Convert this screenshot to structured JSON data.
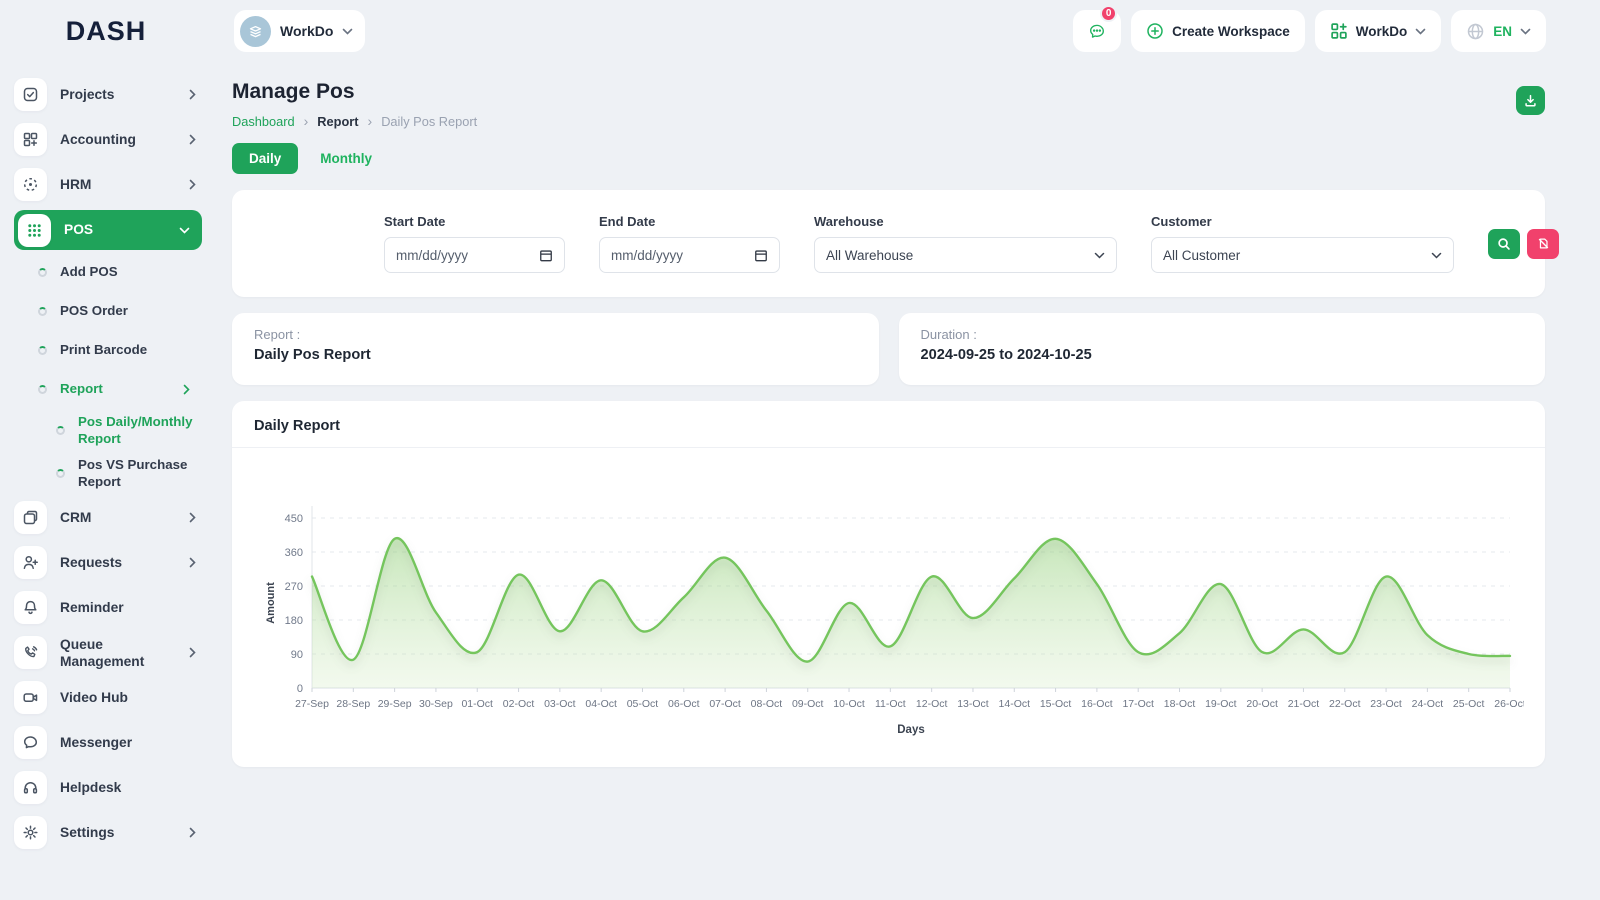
{
  "header": {
    "logo_text": "DASH",
    "workspace_name": "WorkDo",
    "chat_badge": "0",
    "create_workspace_label": "Create Workspace",
    "workspace_menu_label": "WorkDo",
    "language": "EN"
  },
  "sidebar": {
    "items": [
      {
        "label": "Projects"
      },
      {
        "label": "Accounting"
      },
      {
        "label": "HRM"
      },
      {
        "label": "POS"
      },
      {
        "label": "CRM"
      },
      {
        "label": "Requests"
      },
      {
        "label": "Reminder"
      },
      {
        "label": "Queue Management"
      },
      {
        "label": "Video Hub"
      },
      {
        "label": "Messenger"
      },
      {
        "label": "Helpdesk"
      },
      {
        "label": "Settings"
      }
    ],
    "pos_submenu": [
      {
        "label": "Add POS"
      },
      {
        "label": "POS Order"
      },
      {
        "label": "Print Barcode"
      },
      {
        "label": "Report"
      }
    ],
    "report_submenu": [
      {
        "label": "Pos Daily/Monthly Report"
      },
      {
        "label": "Pos VS Purchase Report"
      }
    ]
  },
  "page": {
    "title": "Manage Pos",
    "breadcrumb": [
      "Dashboard",
      "Report",
      "Daily Pos Report"
    ],
    "breadcrumb_separator": "›",
    "tabs": {
      "daily": "Daily",
      "monthly": "Monthly"
    }
  },
  "filters": {
    "start_date": {
      "label": "Start Date",
      "placeholder": "mm/dd/yyyy"
    },
    "end_date": {
      "label": "End Date",
      "placeholder": "mm/dd/yyyy"
    },
    "warehouse": {
      "label": "Warehouse",
      "value": "All Warehouse"
    },
    "customer": {
      "label": "Customer",
      "value": "All Customer"
    }
  },
  "summary": {
    "report_label": "Report :",
    "report_value": "Daily Pos Report",
    "duration_label": "Duration :",
    "duration_value": "2024-09-25 to 2024-10-25"
  },
  "chart_data": {
    "type": "area",
    "title": "Daily Report",
    "xlabel": "Days",
    "ylabel": "Amount",
    "ylim": [
      0,
      450
    ],
    "yticks": [
      0,
      90,
      180,
      270,
      360,
      450
    ],
    "grid": "horizontal-dashed",
    "legend": "none",
    "line_color": "#74c55d",
    "fill_color_top": "rgba(143,206,118,0.50)",
    "fill_color_bottom": "rgba(213,236,198,0.30)",
    "categories": [
      "27-Sep",
      "28-Sep",
      "29-Sep",
      "30-Sep",
      "01-Oct",
      "02-Oct",
      "03-Oct",
      "04-Oct",
      "05-Oct",
      "06-Oct",
      "07-Oct",
      "08-Oct",
      "09-Oct",
      "10-Oct",
      "11-Oct",
      "12-Oct",
      "13-Oct",
      "14-Oct",
      "15-Oct",
      "16-Oct",
      "17-Oct",
      "18-Oct",
      "19-Oct",
      "20-Oct",
      "21-Oct",
      "22-Oct",
      "23-Oct",
      "24-Oct",
      "25-Oct",
      "26-Oct"
    ],
    "values": [
      295,
      75,
      395,
      200,
      95,
      300,
      150,
      285,
      150,
      240,
      345,
      205,
      70,
      225,
      110,
      295,
      185,
      290,
      395,
      275,
      95,
      145,
      275,
      95,
      155,
      95,
      295,
      140,
      90,
      85
    ]
  }
}
